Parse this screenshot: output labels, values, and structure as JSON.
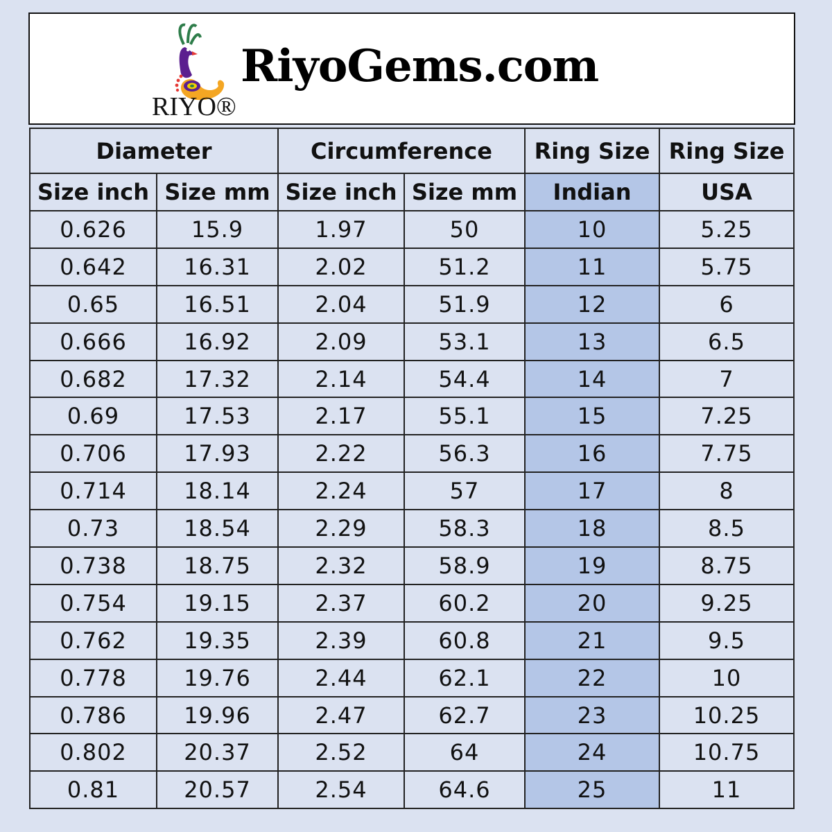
{
  "header": {
    "site_title": "RiyoGems.com",
    "logo_text": "RIYO®"
  },
  "colors": {
    "background": "#dbe2f1",
    "highlight_column": "#b4c6e7",
    "border": "#222222"
  },
  "table": {
    "group_headers": [
      "Diameter",
      "Circumference",
      "Ring Size",
      "Ring Size"
    ],
    "sub_headers": [
      "Size inch",
      "Size mm",
      "Size inch",
      "Size mm",
      "Indian",
      "USA"
    ],
    "rows": [
      [
        "0.626",
        "15.9",
        "1.97",
        "50",
        "10",
        "5.25"
      ],
      [
        "0.642",
        "16.31",
        "2.02",
        "51.2",
        "11",
        "5.75"
      ],
      [
        "0.65",
        "16.51",
        "2.04",
        "51.9",
        "12",
        "6"
      ],
      [
        "0.666",
        "16.92",
        "2.09",
        "53.1",
        "13",
        "6.5"
      ],
      [
        "0.682",
        "17.32",
        "2.14",
        "54.4",
        "14",
        "7"
      ],
      [
        "0.69",
        "17.53",
        "2.17",
        "55.1",
        "15",
        "7.25"
      ],
      [
        "0.706",
        "17.93",
        "2.22",
        "56.3",
        "16",
        "7.75"
      ],
      [
        "0.714",
        "18.14",
        "2.24",
        "57",
        "17",
        "8"
      ],
      [
        "0.73",
        "18.54",
        "2.29",
        "58.3",
        "18",
        "8.5"
      ],
      [
        "0.738",
        "18.75",
        "2.32",
        "58.9",
        "19",
        "8.75"
      ],
      [
        "0.754",
        "19.15",
        "2.37",
        "60.2",
        "20",
        "9.25"
      ],
      [
        "0.762",
        "19.35",
        "2.39",
        "60.8",
        "21",
        "9.5"
      ],
      [
        "0.778",
        "19.76",
        "2.44",
        "62.1",
        "22",
        "10"
      ],
      [
        "0.786",
        "19.96",
        "2.47",
        "62.7",
        "23",
        "10.25"
      ],
      [
        "0.802",
        "20.37",
        "2.52",
        "64",
        "24",
        "10.75"
      ],
      [
        "0.81",
        "20.57",
        "2.54",
        "64.6",
        "25",
        "11"
      ]
    ]
  }
}
